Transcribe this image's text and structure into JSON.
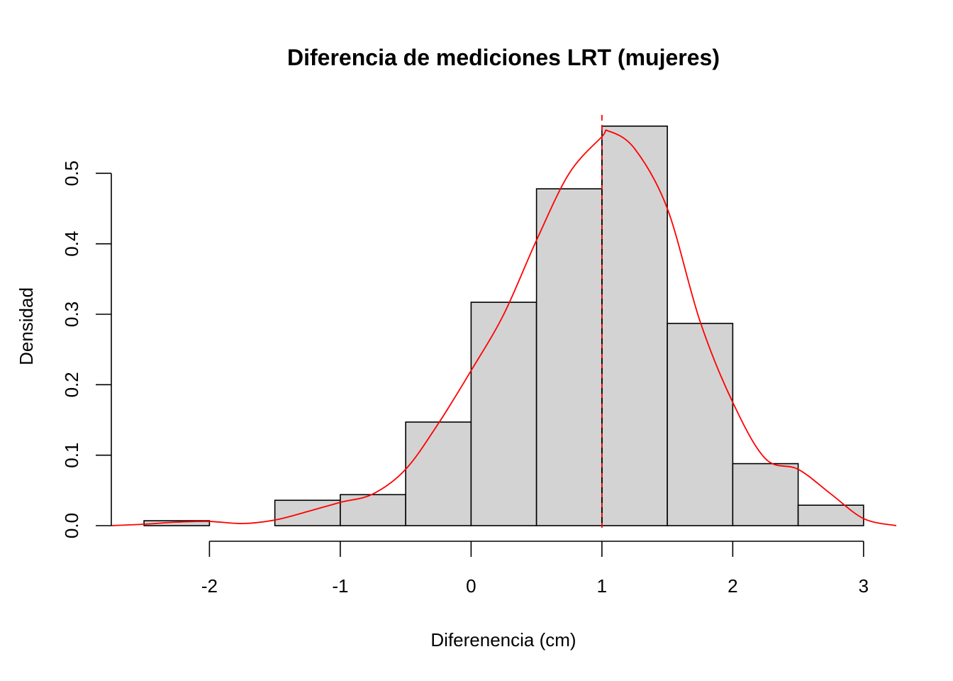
{
  "chart_data": {
    "type": "bar",
    "title": "Diferencia de mediciones LRT (mujeres)",
    "xlabel": "Diferenencia (cm)",
    "ylabel": "Densidad",
    "xlim": [
      -2.75,
      3.25
    ],
    "ylim": [
      0,
      0.6
    ],
    "x_ticks": [
      -2,
      -1,
      0,
      1,
      2,
      3
    ],
    "x_tick_labels": [
      "-2",
      "-1",
      "0",
      "1",
      "2",
      "3"
    ],
    "y_ticks": [
      0.0,
      0.1,
      0.2,
      0.3,
      0.4,
      0.5
    ],
    "y_tick_labels": [
      "0.0",
      "0.1",
      "0.2",
      "0.3",
      "0.4",
      "0.5"
    ],
    "grid": false,
    "histogram": {
      "bin_edges": [
        -2.5,
        -2.0,
        -1.5,
        -1.0,
        -0.5,
        0.0,
        0.5,
        1.0,
        1.5,
        2.0,
        2.5,
        3.0
      ],
      "densities": [
        0.007,
        0.0,
        0.036,
        0.044,
        0.147,
        0.317,
        0.478,
        0.567,
        0.287,
        0.088,
        0.029
      ],
      "fill_color": "#d3d3d3",
      "edge_color": "#000000"
    },
    "density_curve": {
      "color": "#ff0000",
      "x": [
        -2.75,
        -2.5,
        -2.25,
        -2.0,
        -1.75,
        -1.5,
        -1.25,
        -1.0,
        -0.75,
        -0.5,
        -0.25,
        0.0,
        0.25,
        0.5,
        0.75,
        1.0,
        1.05,
        1.25,
        1.5,
        1.75,
        2.0,
        2.25,
        2.5,
        2.75,
        3.0,
        3.25
      ],
      "y": [
        0.0,
        0.002,
        0.005,
        0.006,
        0.003,
        0.008,
        0.02,
        0.033,
        0.045,
        0.08,
        0.145,
        0.22,
        0.3,
        0.405,
        0.5,
        0.552,
        0.56,
        0.535,
        0.45,
        0.29,
        0.175,
        0.095,
        0.08,
        0.045,
        0.01,
        0.0
      ]
    },
    "reference_line": {
      "x": 1.0,
      "style": "dashed",
      "colors": [
        "#ff0000",
        "#000000"
      ]
    }
  }
}
